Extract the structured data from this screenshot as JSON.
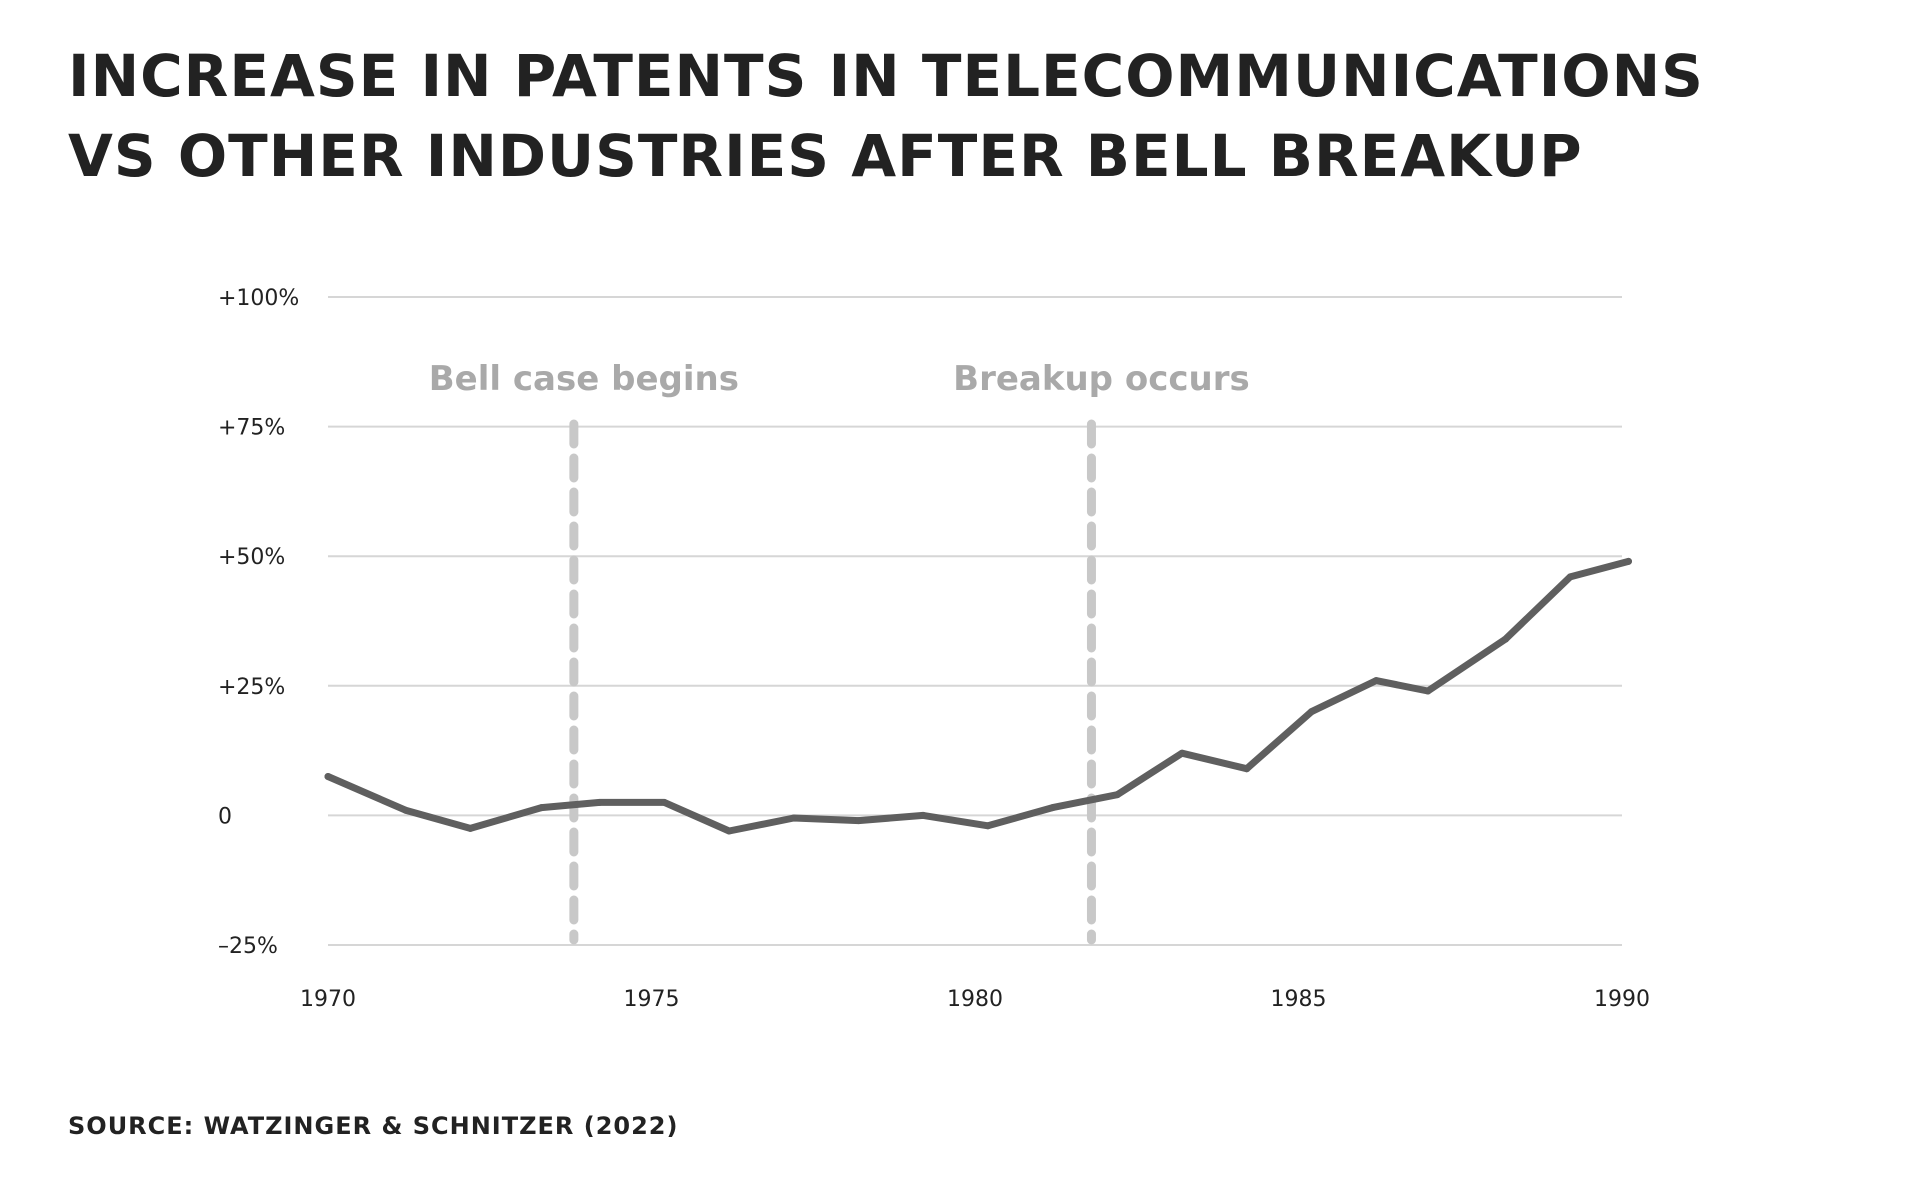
{
  "title_lines": [
    "INCREASE IN PATENTS IN TELECOMMUNICATIONS",
    "VS OTHER INDUSTRIES AFTER BELL BREAKUP"
  ],
  "source": "SOURCE: WATZINGER & SCHNITZER (2022)",
  "colors": {
    "line": "#5f5f5f",
    "grid": "#d6d6d6",
    "marker": "#c8c8c8",
    "annotation": "#a9a9a9",
    "text": "#222222"
  },
  "chart_data": {
    "type": "line",
    "title": "INCREASE IN PATENTS IN TELECOMMUNICATIONS VS OTHER INDUSTRIES AFTER BELL BREAKUP",
    "xlabel": "",
    "ylabel": "",
    "xlim": [
      1970,
      1990
    ],
    "ylim": [
      -25,
      100
    ],
    "x_ticks": [
      1970,
      1975,
      1980,
      1985,
      1990
    ],
    "y_ticks": [
      {
        "value": 100,
        "label": "+100%"
      },
      {
        "value": 75,
        "label": "+75%"
      },
      {
        "value": 50,
        "label": "+50%"
      },
      {
        "value": 25,
        "label": "+25%"
      },
      {
        "value": 0,
        "label": "0"
      },
      {
        "value": -25,
        "label": "–25%"
      }
    ],
    "grid": true,
    "series": [
      {
        "points": [
          {
            "x": 1970,
            "y": 7.5
          },
          {
            "x": 1971.2,
            "y": 1
          },
          {
            "x": 1972.2,
            "y": -2.5
          },
          {
            "x": 1973.3,
            "y": 1.5
          },
          {
            "x": 1974.2,
            "y": 2.5
          },
          {
            "x": 1975.2,
            "y": 2.5
          },
          {
            "x": 1976.2,
            "y": -3
          },
          {
            "x": 1977.2,
            "y": -0.5
          },
          {
            "x": 1978.2,
            "y": -1
          },
          {
            "x": 1979.2,
            "y": 0
          },
          {
            "x": 1980.2,
            "y": -2
          },
          {
            "x": 1981.2,
            "y": 1.5
          },
          {
            "x": 1982.2,
            "y": 4
          },
          {
            "x": 1983.2,
            "y": 12
          },
          {
            "x": 1984.2,
            "y": 9
          },
          {
            "x": 1985.2,
            "y": 20
          },
          {
            "x": 1986.2,
            "y": 26
          },
          {
            "x": 1987.0,
            "y": 24
          },
          {
            "x": 1988.2,
            "y": 34
          },
          {
            "x": 1989.2,
            "y": 46
          },
          {
            "x": 1990.1,
            "y": 49
          }
        ]
      }
    ],
    "annotations": [
      {
        "label": "Bell case begins",
        "x": 1973.8
      },
      {
        "label": "Breakup occurs",
        "x": 1981.8
      }
    ]
  }
}
